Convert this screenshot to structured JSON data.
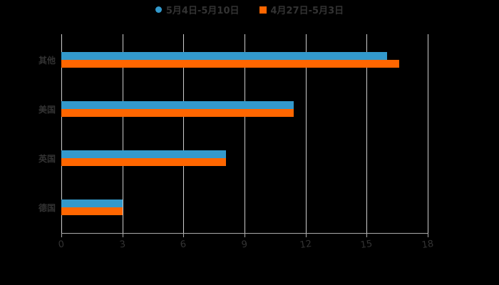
{
  "chart_data": {
    "type": "bar",
    "orientation": "horizontal",
    "title": "",
    "xlabel": "",
    "ylabel": "",
    "categories": [
      "其他",
      "美国",
      "英国",
      "德国"
    ],
    "series": [
      {
        "name": "5月4日-5月10日",
        "color": "#3399CC",
        "values": [
          16,
          11.4,
          8.1,
          3
        ]
      },
      {
        "name": "4月27日-5月3日",
        "color": "#FF6600",
        "values": [
          16.6,
          11.4,
          8.1,
          3
        ]
      }
    ],
    "xlim": [
      0,
      18
    ],
    "xticks": [
      "0",
      "3",
      "6",
      "9",
      "12",
      "15",
      "18"
    ],
    "grid": true,
    "legend_position": "top"
  },
  "legend": {
    "items": [
      {
        "label": "5月4日-5月10日",
        "color": "#3399CC"
      },
      {
        "label": "4月27日-5月3日",
        "color": "#FF6600"
      }
    ]
  }
}
